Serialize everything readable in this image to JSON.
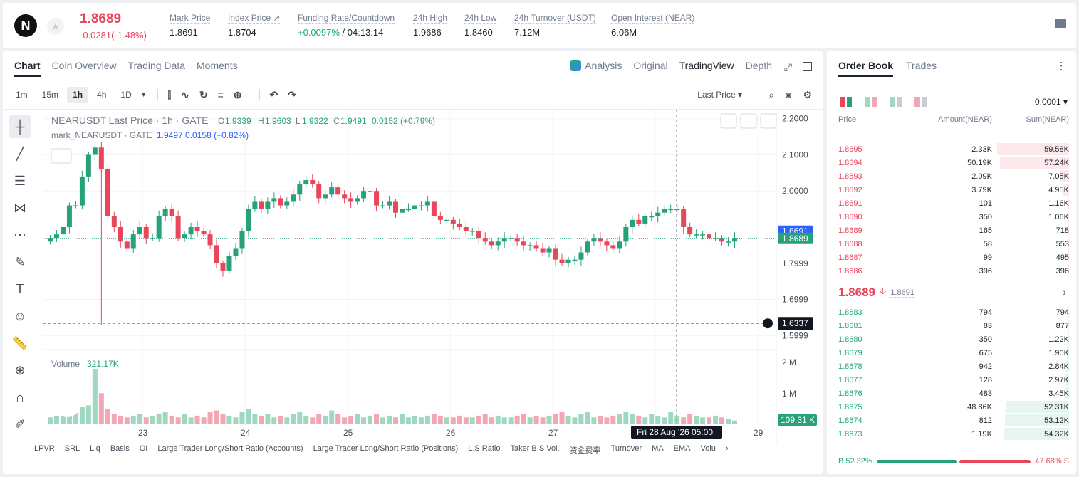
{
  "topbar": {
    "logo_glyph": "N",
    "last_price": "1.8689",
    "change": "-0.0281(-1.48%)",
    "stats": [
      {
        "label": "Mark Price",
        "value": "1.8691"
      },
      {
        "label": "Index Price ↗",
        "value": "1.8704"
      },
      {
        "label": "Funding Rate/Countdown",
        "value_green": "+0.0097%",
        "value": " / 04:13:14"
      },
      {
        "label": "24h High",
        "value": "1.9686"
      },
      {
        "label": "24h Low",
        "value": "1.8460"
      },
      {
        "label": "24h Turnover (USDT)",
        "value": "7.12M"
      },
      {
        "label": "Open Interest (NEAR)",
        "value": "6.06M"
      }
    ]
  },
  "chart_tabs": {
    "left": [
      "Chart",
      "Coin Overview",
      "Trading Data",
      "Moments"
    ],
    "right": [
      "Analysis",
      "Original",
      "TradingView",
      "Depth"
    ]
  },
  "timeframes": [
    "1m",
    "15m",
    "1h",
    "4h",
    "1D"
  ],
  "price_type": "Last Price ▾",
  "legend": {
    "title": "NEARUSDT Last Price · 1h · GATE",
    "o_label": "O",
    "o": "1.9339",
    "h_label": "H",
    "h": "1.9603",
    "l_label": "L",
    "l": "1.9322",
    "c_label": "C",
    "c": "1.9491",
    "chg": "0.0152 (+0.79%)",
    "mark_label": "mark_NEARUSDT · GATE",
    "mark_vals": "1.9497  0.0158 (+0.82%)",
    "volume_label": "Volume",
    "volume_val": "321.17K"
  },
  "chart_data": {
    "type": "candlestick",
    "symbol": "NEARUSDT",
    "interval": "1h",
    "y_ticks": [
      "2.2000",
      "2.1000",
      "2.0000",
      "1.7999",
      "1.6999",
      "1.5999"
    ],
    "ylim": [
      1.575,
      2.225
    ],
    "volume_ticks": [
      "2 M",
      "1 M"
    ],
    "x_ticks": [
      "23",
      "24",
      "25",
      "26",
      "27",
      "29"
    ],
    "price_tags": {
      "mark": "1.8691",
      "last": "1.8689",
      "crosshair": "1.6337",
      "volume": "109.31 K"
    },
    "crosshair_time": "Fri 28 Aug '26   05:00",
    "closes": [
      1.87,
      1.88,
      1.9,
      1.96,
      1.96,
      2.04,
      2.1,
      2.12,
      2.06,
      1.93,
      1.9,
      1.86,
      1.84,
      1.88,
      1.9,
      1.87,
      1.87,
      1.93,
      1.95,
      1.93,
      1.87,
      1.88,
      1.9,
      1.89,
      1.88,
      1.85,
      1.8,
      1.78,
      1.82,
      1.84,
      1.89,
      1.95,
      1.97,
      1.95,
      1.97,
      1.98,
      1.96,
      1.97,
      1.99,
      2.02,
      2.03,
      2.02,
      1.98,
      1.99,
      2.01,
      1.99,
      1.98,
      1.97,
      1.98,
      2.0,
      2.0,
      1.96,
      1.96,
      1.97,
      1.94,
      1.95,
      1.95,
      1.96,
      1.96,
      1.97,
      1.93,
      1.92,
      1.92,
      1.91,
      1.9,
      1.89,
      1.89,
      1.87,
      1.86,
      1.85,
      1.86,
      1.87,
      1.87,
      1.86,
      1.85,
      1.85,
      1.84,
      1.83,
      1.84,
      1.81,
      1.8,
      1.81,
      1.81,
      1.83,
      1.86,
      1.87,
      1.86,
      1.85,
      1.84,
      1.86,
      1.9,
      1.92,
      1.91,
      1.93,
      1.93,
      1.94,
      1.95,
      1.95,
      1.95,
      1.9,
      1.88,
      1.88,
      1.88,
      1.87,
      1.87,
      1.86,
      1.86,
      1.87
    ],
    "volumes": [
      0.2,
      0.25,
      0.3,
      0.4,
      0.35,
      0.5,
      0.55,
      1.6,
      0.9,
      0.45,
      0.3,
      0.25,
      0.2,
      0.25,
      0.3,
      0.2,
      0.25,
      0.3,
      0.35,
      0.25,
      0.2,
      0.3,
      0.2,
      0.25,
      0.2,
      0.35,
      0.4,
      0.3,
      0.25,
      0.2,
      0.35,
      0.45,
      0.3,
      0.25,
      0.3,
      0.2,
      0.25,
      0.2,
      0.3,
      0.35,
      0.25,
      0.2,
      0.3,
      0.25,
      0.4,
      0.3,
      0.2,
      0.25,
      0.3,
      0.2,
      0.25,
      0.3,
      0.2,
      0.25,
      0.2,
      0.3,
      0.2,
      0.25,
      0.2,
      0.25,
      0.3,
      0.25,
      0.2,
      0.2,
      0.25,
      0.2,
      0.2,
      0.25,
      0.3,
      0.2,
      0.25,
      0.2,
      0.2,
      0.25,
      0.3,
      0.2,
      0.25,
      0.2,
      0.25,
      0.3,
      0.35,
      0.25,
      0.2,
      0.3,
      0.35,
      0.2,
      0.25,
      0.2,
      0.25,
      0.3,
      0.35,
      0.3,
      0.25,
      0.2,
      0.3,
      0.25,
      0.2,
      0.35,
      0.25,
      0.2,
      0.3,
      0.25,
      0.2,
      0.2,
      0.25,
      0.2,
      0.15,
      0.11
    ]
  },
  "indicators": [
    "LPVR",
    "SRL",
    "Liq",
    "Basis",
    "OI",
    "Large Trader Long/Short Ratio (Accounts)",
    "Large Trader Long/Short Ratio (Positions)",
    "L.S Ratio",
    "Taker B.S Vol.",
    "资金费率",
    "Turnover",
    "MA",
    "EMA",
    "Volu"
  ],
  "orderbook": {
    "tabs": [
      "Order Book",
      "Trades"
    ],
    "precision": "0.0001 ▾",
    "headers": [
      "Price",
      "Amount(NEAR)",
      "Sum(NEAR)"
    ],
    "asks": [
      {
        "price": "1.8695",
        "amount": "2.33K",
        "sum": "59.58K",
        "depth": 0.96
      },
      {
        "price": "1.8694",
        "amount": "50.19K",
        "sum": "57.24K",
        "depth": 0.92
      },
      {
        "price": "1.8693",
        "amount": "2.09K",
        "sum": "7.05K",
        "depth": 0.12
      },
      {
        "price": "1.8692",
        "amount": "3.79K",
        "sum": "4.95K",
        "depth": 0.08
      },
      {
        "price": "1.8691",
        "amount": "101",
        "sum": "1.16K",
        "depth": 0.02
      },
      {
        "price": "1.8690",
        "amount": "350",
        "sum": "1.06K",
        "depth": 0.02
      },
      {
        "price": "1.8689",
        "amount": "165",
        "sum": "718",
        "depth": 0.01
      },
      {
        "price": "1.8688",
        "amount": "58",
        "sum": "553",
        "depth": 0.01
      },
      {
        "price": "1.8687",
        "amount": "99",
        "sum": "495",
        "depth": 0.01
      },
      {
        "price": "1.8686",
        "amount": "396",
        "sum": "396",
        "depth": 0.01
      }
    ],
    "mid_price": "1.8689",
    "mid_arrow": "🡣",
    "mid_mark": "1.8691",
    "bids": [
      {
        "price": "1.8683",
        "amount": "794",
        "sum": "794",
        "depth": 0.01
      },
      {
        "price": "1.8681",
        "amount": "83",
        "sum": "877",
        "depth": 0.01
      },
      {
        "price": "1.8680",
        "amount": "350",
        "sum": "1.22K",
        "depth": 0.02
      },
      {
        "price": "1.8679",
        "amount": "675",
        "sum": "1.90K",
        "depth": 0.03
      },
      {
        "price": "1.8678",
        "amount": "942",
        "sum": "2.84K",
        "depth": 0.05
      },
      {
        "price": "1.8677",
        "amount": "128",
        "sum": "2.97K",
        "depth": 0.05
      },
      {
        "price": "1.8676",
        "amount": "483",
        "sum": "3.45K",
        "depth": 0.06
      },
      {
        "price": "1.8675",
        "amount": "48.86K",
        "sum": "52.31K",
        "depth": 0.85
      },
      {
        "price": "1.8674",
        "amount": "812",
        "sum": "53.12K",
        "depth": 0.86
      },
      {
        "price": "1.8673",
        "amount": "1.19K",
        "sum": "54.32K",
        "depth": 0.88
      }
    ],
    "buy_ratio": "B 52.32%",
    "sell_ratio": "47.68% S",
    "buy_fraction": 0.5232
  },
  "colors": {
    "up": "#26a17b",
    "down": "#e8465a",
    "up_light": "#9fd8c0",
    "down_light": "#f2a7b3"
  }
}
